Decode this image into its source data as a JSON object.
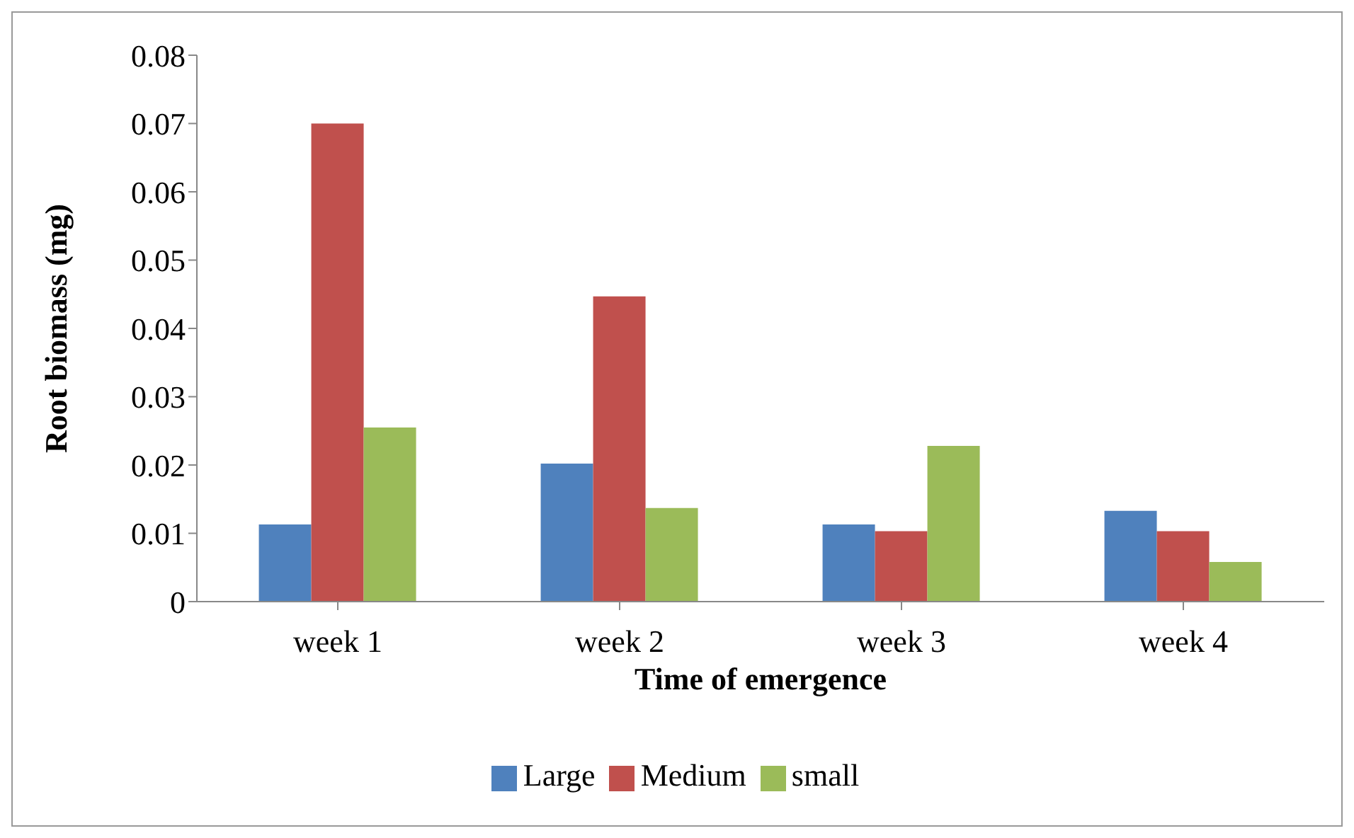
{
  "chart_data": {
    "type": "bar",
    "xlabel": "Time of emergence",
    "ylabel": "Root biomass (mg)",
    "categories": [
      "week 1",
      "week 2",
      "week 3",
      "week 4"
    ],
    "series": [
      {
        "name": "Large",
        "color": "#4f81bd",
        "values": [
          0.0113,
          0.0202,
          0.0113,
          0.0133
        ]
      },
      {
        "name": "Medium",
        "color": "#c0504d",
        "values": [
          0.07,
          0.0447,
          0.0103,
          0.0103
        ]
      },
      {
        "name": "small",
        "color": "#9bbb59",
        "values": [
          0.0255,
          0.0137,
          0.0228,
          0.0058
        ]
      }
    ],
    "ylim": [
      0,
      0.08
    ],
    "yticks": [
      0,
      0.01,
      0.02,
      0.03,
      0.04,
      0.05,
      0.06,
      0.07,
      0.08
    ],
    "grid": false,
    "legend": "bottom"
  }
}
